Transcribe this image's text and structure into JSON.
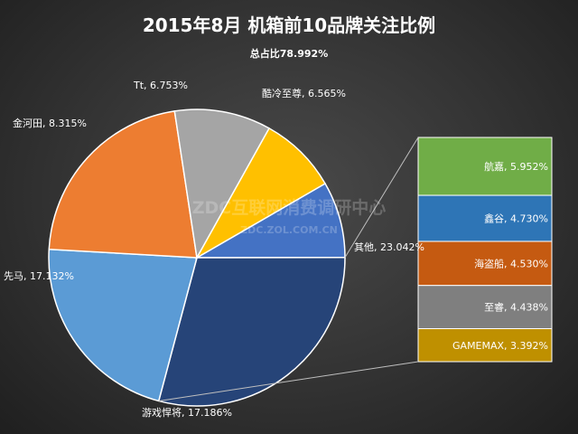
{
  "chart_data": {
    "type": "pie",
    "title": "2015年8月  机箱前10品牌关注比例",
    "subtitle": "总占比78.992%",
    "slices": [
      {
        "label": "酷冷至尊",
        "value": 6.565,
        "text": "酷冷至尊, 6.565%",
        "color": "#4472c4"
      },
      {
        "label": "其他",
        "value": 23.042,
        "text": "其他, 23.042%",
        "color": "#264478"
      },
      {
        "label": "游戏悍将",
        "value": 17.186,
        "text": "游戏悍将, 17.186%",
        "color": "#5b9bd5"
      },
      {
        "label": "先马",
        "value": 17.132,
        "text": "先马, 17.132%",
        "color": "#ed7d31"
      },
      {
        "label": "金河田",
        "value": 8.315,
        "text": "金河田, 8.315%",
        "color": "#a5a5a5"
      },
      {
        "label": "Tt",
        "value": 6.753,
        "text": "Tt, 6.753%",
        "color": "#ffc000"
      }
    ],
    "breakout_of": "其他",
    "breakout": [
      {
        "label": "航嘉",
        "value": 5.952,
        "text": "航嘉, 5.952%",
        "color": "#70ad47"
      },
      {
        "label": "鑫谷",
        "value": 4.73,
        "text": "鑫谷, 4.730%",
        "color": "#2e75b6"
      },
      {
        "label": "海盗船",
        "value": 4.53,
        "text": "海盗船, 4.530%",
        "color": "#c55a11"
      },
      {
        "label": "至睿",
        "value": 4.438,
        "text": "至睿, 4.438%",
        "color": "#7f7f7f"
      },
      {
        "label": "GAMEMAX",
        "value": 3.392,
        "text": "GAMEMAX, 3.392%",
        "color": "#bf9000"
      }
    ]
  },
  "watermark": {
    "line1": "ZDC互联网消费调研中心",
    "line2": "ZDC.ZOL.COM.CN"
  }
}
